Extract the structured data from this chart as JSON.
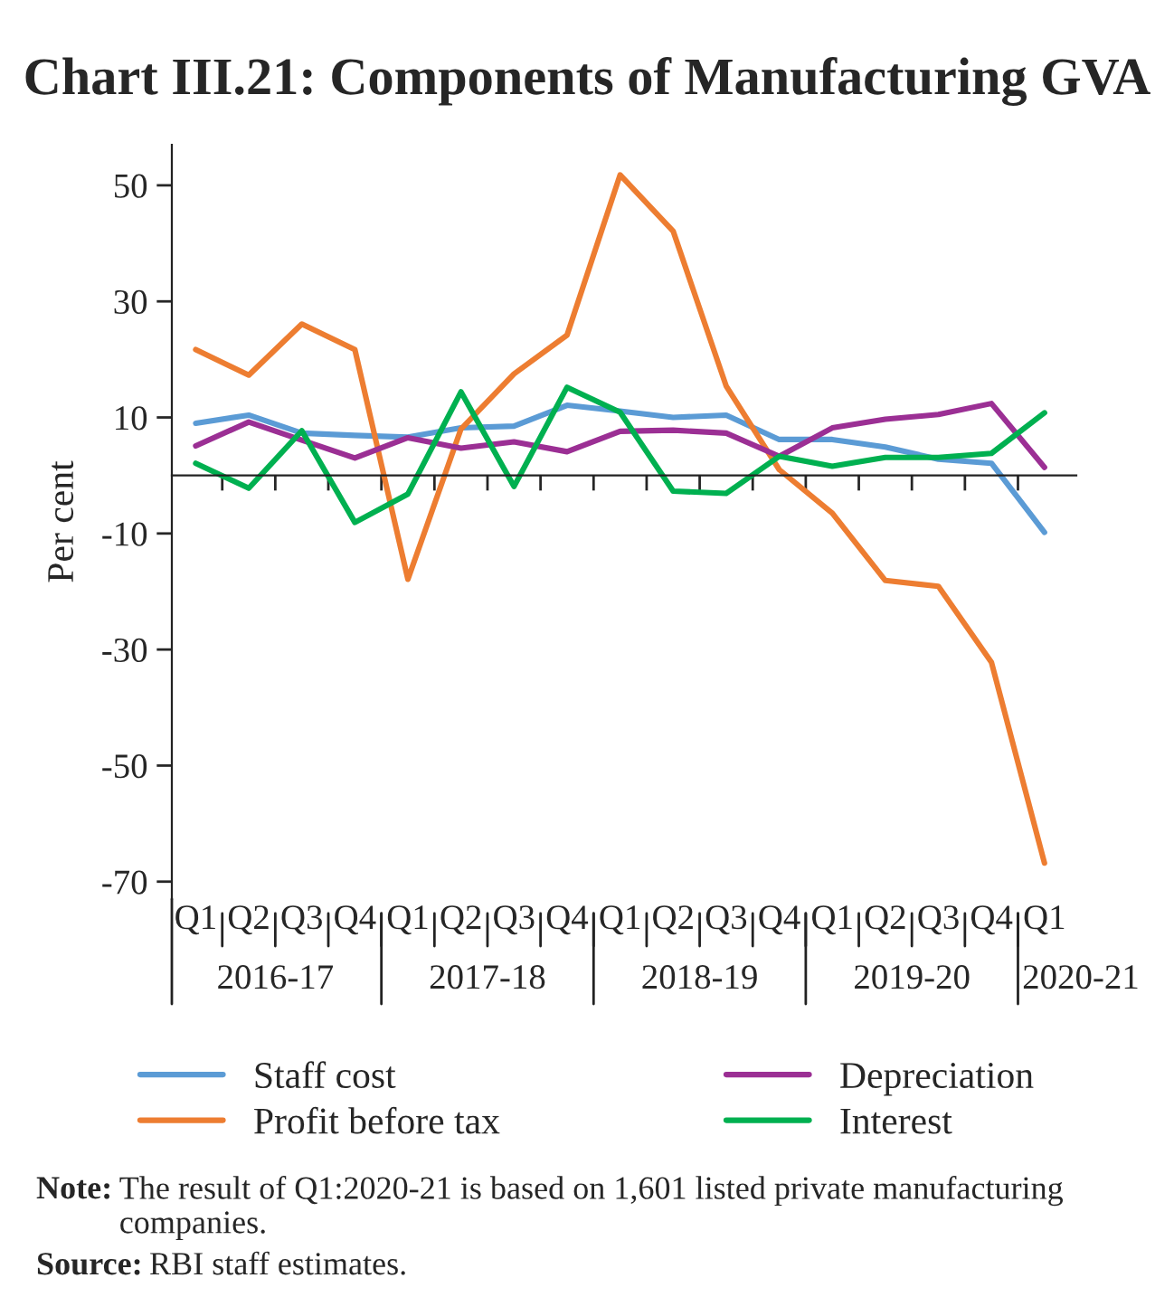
{
  "chart_data": {
    "type": "line",
    "title": "Chart III.21: Components of Manufacturing GVA",
    "ylabel": "Per cent",
    "categories": [
      "Q1",
      "Q2",
      "Q3",
      "Q4",
      "Q1",
      "Q2",
      "Q3",
      "Q4",
      "Q1",
      "Q2",
      "Q3",
      "Q4",
      "Q1",
      "Q2",
      "Q3",
      "Q4",
      "Q1"
    ],
    "series": [
      {
        "name": "Staff cost",
        "color": "#5b9bd5",
        "values": [
          9.0,
          10.4,
          7.3,
          6.9,
          6.6,
          8.2,
          8.5,
          12.1,
          11.1,
          10.0,
          10.4,
          6.2,
          6.2,
          4.9,
          2.8,
          2.1,
          -9.8
        ]
      },
      {
        "name": "Profit before tax",
        "color": "#ed7d31",
        "values": [
          21.7,
          17.3,
          26.1,
          21.7,
          -17.9,
          8.0,
          17.5,
          24.2,
          51.8,
          42.1,
          15.4,
          1.0,
          -6.5,
          -18.1,
          -19.1,
          -32.2,
          -66.8
        ]
      },
      {
        "name": "Depreciation",
        "color": "#9b2f94",
        "values": [
          5.1,
          9.2,
          6.1,
          3.0,
          6.5,
          4.7,
          5.8,
          4.1,
          7.6,
          7.8,
          7.3,
          3.3,
          8.2,
          9.7,
          10.5,
          12.4,
          1.4
        ]
      },
      {
        "name": "Interest",
        "color": "#00b050",
        "values": [
          2.1,
          -2.2,
          7.7,
          -8.1,
          -3.2,
          14.4,
          -1.9,
          15.2,
          10.9,
          -2.7,
          -3.1,
          3.3,
          1.6,
          3.1,
          3.1,
          3.8,
          10.8
        ]
      }
    ],
    "ylim": [
      -73,
      57
    ],
    "yticks": [
      50,
      30,
      10,
      -10,
      -30,
      -50,
      -70
    ],
    "grid": false,
    "legend": "bottom",
    "marker": "none",
    "line_style": "solid",
    "annotations": [
      "2016-17",
      "2017-18",
      "2018-19",
      "2019-20",
      "2020-21",
      "Note: The result of Q1:2020-21 is based on 1,601 listed private manufacturing companies.",
      "Source: RBI staff estimates."
    ]
  }
}
